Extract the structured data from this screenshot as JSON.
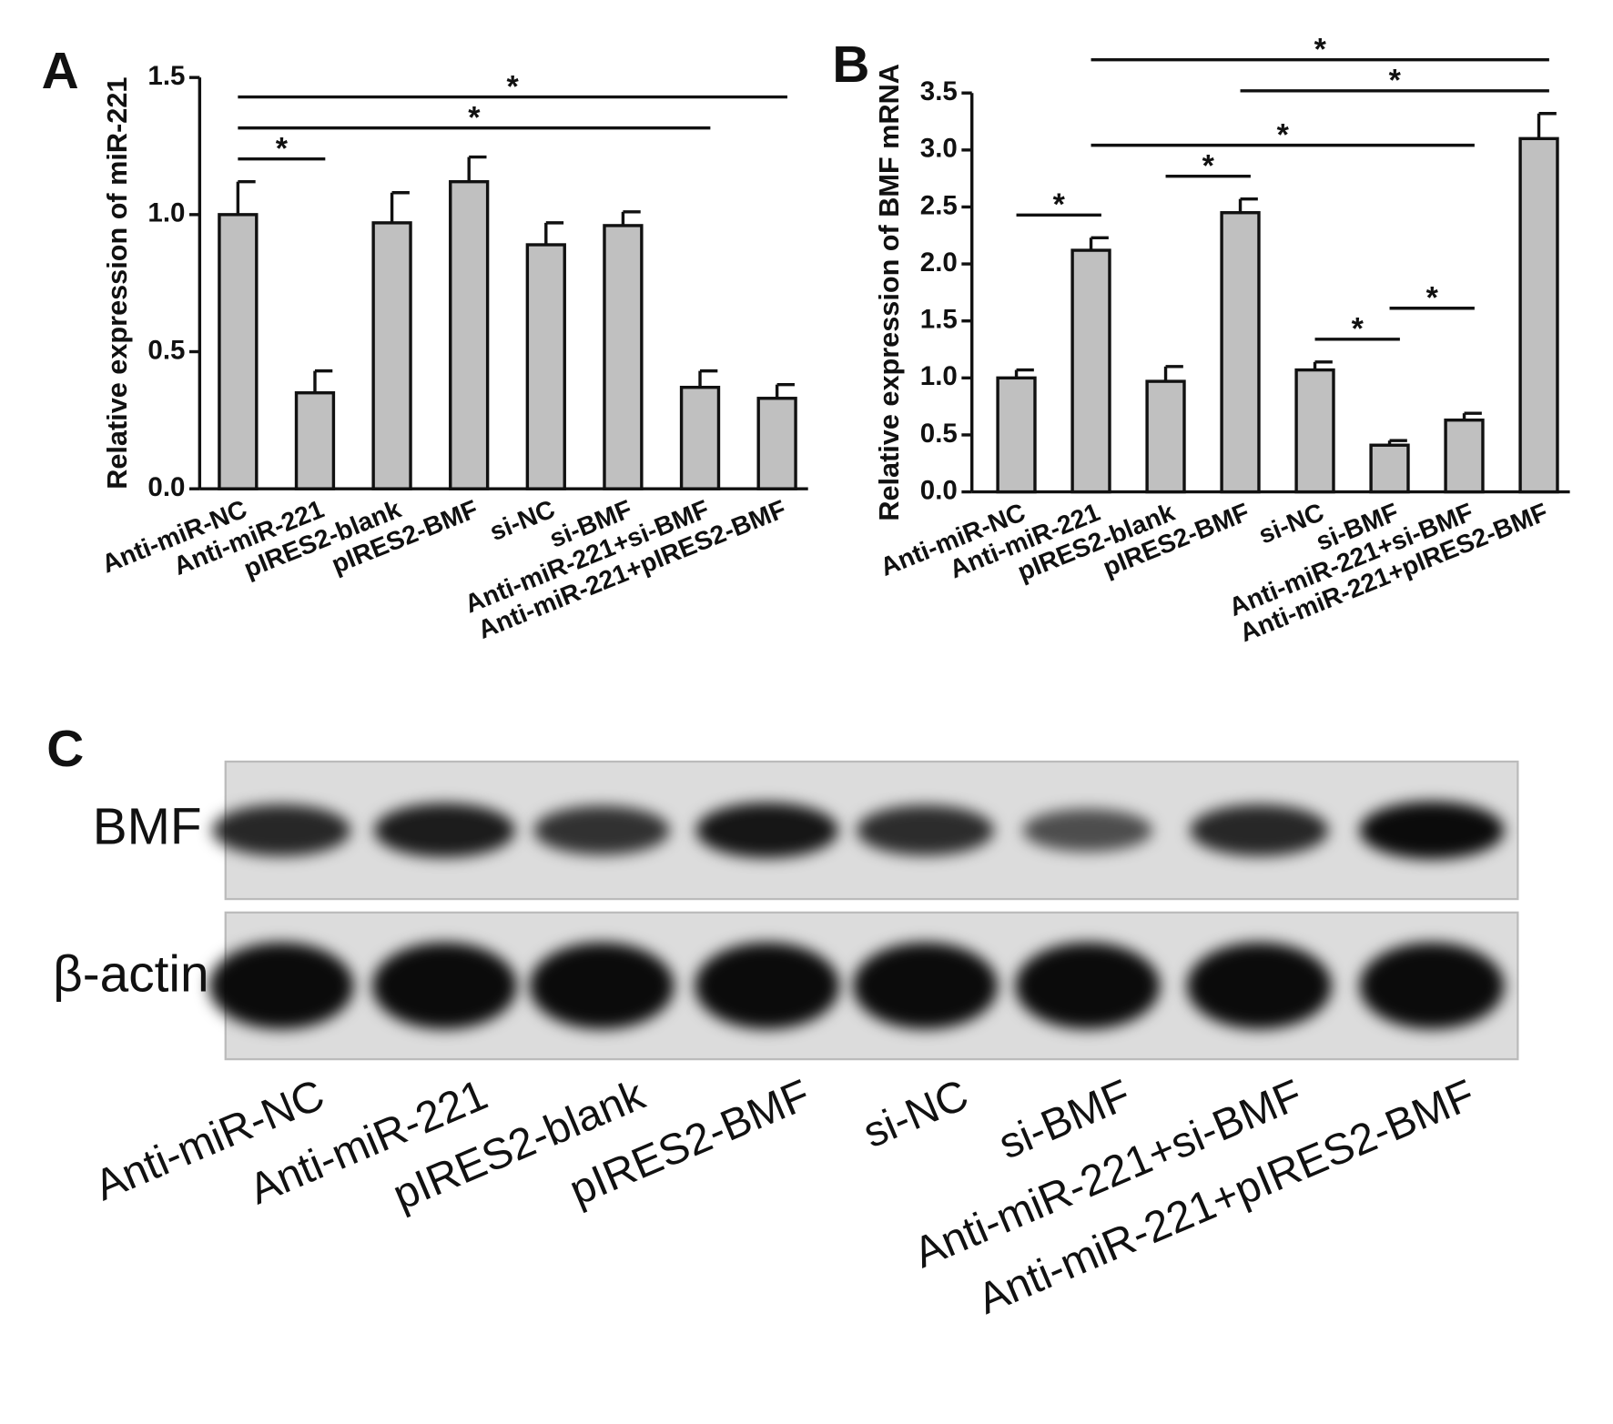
{
  "chart_data": [
    {
      "type": "bar",
      "panel_label": "A",
      "ylabel": "Relative expression of miR-221",
      "categories": [
        "Anti-miR-NC",
        "Anti-miR-221",
        "pIRES2-blank",
        "pIRES2-BMF",
        "si-NC",
        "si-BMF",
        "Anti-miR-221+si-BMF",
        "Anti-miR-221+pIRES2-BMF"
      ],
      "values": [
        1.0,
        0.35,
        0.97,
        1.12,
        0.89,
        0.96,
        0.37,
        0.33
      ],
      "errors": [
        0.12,
        0.08,
        0.11,
        0.09,
        0.08,
        0.05,
        0.06,
        0.05
      ],
      "color": "#c0c0c0",
      "ylim": [
        0,
        1.5
      ],
      "yticks": [
        {
          "value": 0,
          "label": "0.0"
        },
        {
          "value": 0.5,
          "label": "0.5"
        },
        {
          "value": 1,
          "label": "1.0"
        },
        {
          "value": 1.5,
          "label": "1.5"
        }
      ],
      "significance": [
        {
          "groups": [
            "Anti-miR-NC",
            "Anti-miR-221"
          ],
          "label": "*"
        },
        {
          "groups": [
            "Anti-miR-NC",
            "Anti-miR-221+si-BMF"
          ],
          "label": "*"
        },
        {
          "groups": [
            "Anti-miR-NC",
            "Anti-miR-221+pIRES2-BMF"
          ],
          "label": "*"
        }
      ]
    },
    {
      "type": "bar",
      "panel_label": "B",
      "ylabel": "Relative expression of BMF mRNA",
      "categories": [
        "Anti-miR-NC",
        "Anti-miR-221",
        "pIRES2-blank",
        "pIRES2-BMF",
        "si-NC",
        "si-BMF",
        "Anti-miR-221+si-BMF",
        "Anti-miR-221+pIRES2-BMF"
      ],
      "values": [
        1.0,
        2.12,
        0.97,
        2.45,
        1.07,
        0.41,
        0.63,
        3.1
      ],
      "errors": [
        0.07,
        0.11,
        0.13,
        0.12,
        0.07,
        0.04,
        0.06,
        0.22
      ],
      "color": "#c0c0c0",
      "ylim": [
        0,
        3.5
      ],
      "yticks": [
        {
          "value": 0,
          "label": "0.0"
        },
        {
          "value": 0.5,
          "label": "0.5"
        },
        {
          "value": 1,
          "label": "1.0"
        },
        {
          "value": 1.5,
          "label": "1.5"
        },
        {
          "value": 2,
          "label": "2.0"
        },
        {
          "value": 2.5,
          "label": "2.5"
        },
        {
          "value": 3,
          "label": "3.0"
        },
        {
          "value": 3.5,
          "label": "3.5"
        }
      ],
      "significance": [
        {
          "groups": [
            "Anti-miR-NC",
            "Anti-miR-221"
          ],
          "label": "*"
        },
        {
          "groups": [
            "pIRES2-blank",
            "pIRES2-BMF"
          ],
          "label": "*"
        },
        {
          "groups": [
            "si-NC",
            "si-BMF"
          ],
          "label": "*"
        },
        {
          "groups": [
            "si-BMF",
            "Anti-miR-221+si-BMF"
          ],
          "label": "*"
        },
        {
          "groups": [
            "Anti-miR-221",
            "Anti-miR-221+si-BMF"
          ],
          "label": "*"
        },
        {
          "groups": [
            "pIRES2-BMF",
            "Anti-miR-221+pIRES2-BMF"
          ],
          "label": "*"
        },
        {
          "groups": [
            "Anti-miR-221",
            "Anti-miR-221+pIRES2-BMF"
          ],
          "label": "*"
        }
      ]
    }
  ],
  "blot": {
    "panel_label": "C",
    "rows": [
      "BMF",
      "β-actin"
    ],
    "lanes": [
      "Anti-miR-NC",
      "Anti-miR-221",
      "pIRES2-blank",
      "pIRES2-BMF",
      "si-NC",
      "si-BMF",
      "Anti-miR-221+si-BMF",
      "Anti-miR-221+pIRES2-BMF"
    ]
  }
}
